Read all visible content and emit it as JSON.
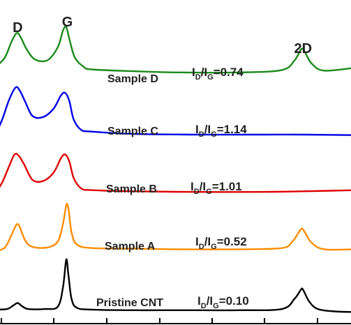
{
  "chart_data": {
    "type": "line",
    "title": "",
    "xlabel": "",
    "ylabel": "",
    "grid": false,
    "peak_labels": [
      {
        "text": "D",
        "x": 1350
      },
      {
        "text": "G",
        "x": 1585
      },
      {
        "text": "2D",
        "x": 2700
      }
    ],
    "xlim": [
      1250,
      2950
    ],
    "ylim": [
      0,
      5.2
    ],
    "series": [
      {
        "name": "Pristine CNT",
        "ratio": "I_D/I_G=0.10",
        "color": "#000000",
        "points": [
          [
            1250,
            0.07
          ],
          [
            1300,
            0.08
          ],
          [
            1330,
            0.14
          ],
          [
            1350,
            0.18
          ],
          [
            1370,
            0.13
          ],
          [
            1400,
            0.08
          ],
          [
            1480,
            0.08
          ],
          [
            1540,
            0.12
          ],
          [
            1565,
            0.45
          ],
          [
            1580,
            0.9
          ],
          [
            1590,
            0.65
          ],
          [
            1605,
            0.25
          ],
          [
            1630,
            0.1
          ],
          [
            1700,
            0.07
          ],
          [
            1900,
            0.06
          ],
          [
            2100,
            0.06
          ],
          [
            2400,
            0.06
          ],
          [
            2600,
            0.08
          ],
          [
            2660,
            0.25
          ],
          [
            2690,
            0.4
          ],
          [
            2700,
            0.4
          ],
          [
            2730,
            0.2
          ],
          [
            2770,
            0.08
          ],
          [
            2850,
            0.04
          ],
          [
            2950,
            0.03
          ]
        ]
      },
      {
        "name": "Sample A",
        "ratio": "I_D/I_G=0.52",
        "color": "#ff8c00",
        "points": [
          [
            1250,
            1.04
          ],
          [
            1290,
            1.1
          ],
          [
            1320,
            1.3
          ],
          [
            1345,
            1.48
          ],
          [
            1360,
            1.44
          ],
          [
            1385,
            1.22
          ],
          [
            1420,
            1.11
          ],
          [
            1490,
            1.1
          ],
          [
            1540,
            1.2
          ],
          [
            1565,
            1.5
          ],
          [
            1580,
            1.8
          ],
          [
            1590,
            1.75
          ],
          [
            1605,
            1.35
          ],
          [
            1630,
            1.15
          ],
          [
            1700,
            1.09
          ],
          [
            1900,
            1.08
          ],
          [
            2100,
            1.07
          ],
          [
            2400,
            1.07
          ],
          [
            2600,
            1.09
          ],
          [
            2650,
            1.2
          ],
          [
            2690,
            1.4
          ],
          [
            2705,
            1.37
          ],
          [
            2740,
            1.18
          ],
          [
            2800,
            1.07
          ],
          [
            2950,
            1.07
          ]
        ]
      },
      {
        "name": "Sample B",
        "ratio": "I_D/I_G=1.01",
        "color": "#e00000",
        "points": [
          [
            1250,
            2.02
          ],
          [
            1280,
            2.2
          ],
          [
            1310,
            2.45
          ],
          [
            1335,
            2.64
          ],
          [
            1355,
            2.62
          ],
          [
            1380,
            2.48
          ],
          [
            1420,
            2.22
          ],
          [
            1470,
            2.2
          ],
          [
            1520,
            2.34
          ],
          [
            1555,
            2.58
          ],
          [
            1575,
            2.64
          ],
          [
            1595,
            2.52
          ],
          [
            1615,
            2.25
          ],
          [
            1650,
            2.08
          ],
          [
            1700,
            2.05
          ],
          [
            1900,
            2.03
          ],
          [
            2200,
            2.02
          ],
          [
            2500,
            2.02
          ],
          [
            2700,
            2.03
          ],
          [
            2950,
            2.05
          ]
        ]
      },
      {
        "name": "Sample C",
        "ratio": "I_D/I_G=1.14",
        "color": "#0000e6",
        "points": [
          [
            1250,
            3.0
          ],
          [
            1280,
            3.25
          ],
          [
            1310,
            3.55
          ],
          [
            1340,
            3.75
          ],
          [
            1360,
            3.7
          ],
          [
            1385,
            3.52
          ],
          [
            1420,
            3.28
          ],
          [
            1470,
            3.26
          ],
          [
            1520,
            3.4
          ],
          [
            1555,
            3.62
          ],
          [
            1575,
            3.66
          ],
          [
            1595,
            3.52
          ],
          [
            1615,
            3.22
          ],
          [
            1650,
            3.05
          ],
          [
            1700,
            3.02
          ],
          [
            1900,
            2.98
          ],
          [
            2200,
            2.97
          ],
          [
            2500,
            2.97
          ],
          [
            2700,
            2.97
          ],
          [
            2950,
            2.96
          ]
        ]
      },
      {
        "name": "Sample D",
        "ratio": "I_D/I_G=0.74",
        "color": "#1a8a1a",
        "points": [
          [
            1250,
            4.1
          ],
          [
            1290,
            4.25
          ],
          [
            1320,
            4.5
          ],
          [
            1345,
            4.65
          ],
          [
            1365,
            4.58
          ],
          [
            1390,
            4.4
          ],
          [
            1430,
            4.22
          ],
          [
            1490,
            4.2
          ],
          [
            1540,
            4.42
          ],
          [
            1565,
            4.7
          ],
          [
            1580,
            4.75
          ],
          [
            1595,
            4.55
          ],
          [
            1620,
            4.25
          ],
          [
            1660,
            4.1
          ],
          [
            1700,
            4.05
          ],
          [
            1900,
            4.02
          ],
          [
            2100,
            4.0
          ],
          [
            2400,
            4.0
          ],
          [
            2600,
            4.04
          ],
          [
            2660,
            4.2
          ],
          [
            2690,
            4.38
          ],
          [
            2705,
            4.36
          ],
          [
            2740,
            4.15
          ],
          [
            2800,
            4.03
          ],
          [
            2950,
            4.08
          ]
        ]
      }
    ]
  }
}
